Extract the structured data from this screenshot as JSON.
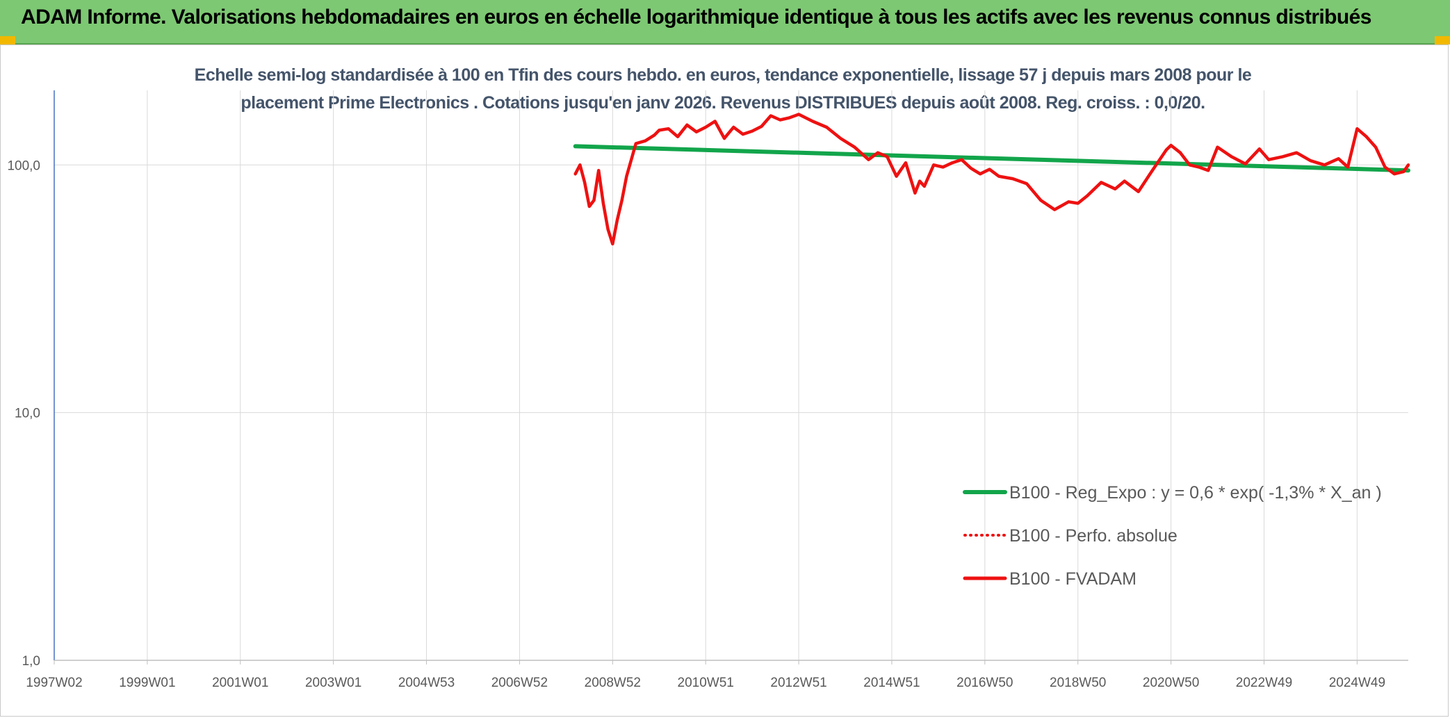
{
  "header": {
    "title": "ADAM Informe. Valorisations hebdomadaires en euros en échelle logarithmique identique à tous les actifs avec les revenus connus distribués"
  },
  "colors": {
    "banner": "#7dc873",
    "trend": "#12a54b",
    "fvadam": "#ee1111",
    "perfo": "#ee1111",
    "grid": "#d9d9d9",
    "axis": "#4472c4"
  },
  "chart_data": {
    "type": "line",
    "title_lines": [
      "Echelle semi-log standardisée à 100 en Tfin des cours hebdo. en euros, tendance exponentielle, lissage 57 j depuis mars 2008 pour le",
      "placement Prime Electronics . Cotations jusqu'en janv 2026. Revenus DISTRIBUES depuis août 2008. Reg. croiss. : 0,0/20."
    ],
    "y_scale": "log",
    "ylim": [
      1,
      200
    ],
    "y_ticks": [
      "1,0",
      "10,0",
      "100,0"
    ],
    "x_range": [
      1997.0,
      2026.1
    ],
    "x_ticks": [
      {
        "label": "1997W02",
        "x": 1997.0
      },
      {
        "label": "1999W01",
        "x": 1999.0
      },
      {
        "label": "2001W01",
        "x": 2001.0
      },
      {
        "label": "2003W01",
        "x": 2003.0
      },
      {
        "label": "2004W53",
        "x": 2005.0
      },
      {
        "label": "2006W52",
        "x": 2007.0
      },
      {
        "label": "2008W52",
        "x": 2009.0
      },
      {
        "label": "2010W51",
        "x": 2011.0
      },
      {
        "label": "2012W51",
        "x": 2013.0
      },
      {
        "label": "2014W51",
        "x": 2015.0
      },
      {
        "label": "2016W50",
        "x": 2017.0
      },
      {
        "label": "2018W50",
        "x": 2019.0
      },
      {
        "label": "2020W50",
        "x": 2021.0
      },
      {
        "label": "2022W49",
        "x": 2023.0
      },
      {
        "label": "2024W49",
        "x": 2025.0
      }
    ],
    "grid": true,
    "legend_position": "right",
    "legend": [
      {
        "name": "B100 - Reg_Expo : y = 0,6 * exp( -1,3% *  X_an )",
        "style": "solid-thick",
        "color": "#12a54b"
      },
      {
        "name": "B100 - Perfo. absolue",
        "style": "dotted",
        "color": "#ee1111"
      },
      {
        "name": "B100 - FVADAM",
        "style": "solid",
        "color": "#ee1111"
      }
    ],
    "series": [
      {
        "name": "B100 - Reg_Expo : y = 0,6 * exp( -1,3% *  X_an )",
        "x": [
          2008.2,
          2026.1
        ],
        "y": [
          119,
          95
        ]
      },
      {
        "name": "B100 - FVADAM",
        "x": [
          2008.2,
          2008.3,
          2008.4,
          2008.5,
          2008.6,
          2008.7,
          2008.8,
          2008.9,
          2009.0,
          2009.1,
          2009.2,
          2009.3,
          2009.5,
          2009.7,
          2009.9,
          2010.0,
          2010.2,
          2010.4,
          2010.6,
          2010.8,
          2011.0,
          2011.2,
          2011.4,
          2011.6,
          2011.8,
          2012.0,
          2012.2,
          2012.4,
          2012.6,
          2012.8,
          2013.0,
          2013.3,
          2013.6,
          2013.9,
          2014.2,
          2014.5,
          2014.7,
          2014.9,
          2015.1,
          2015.3,
          2015.5,
          2015.6,
          2015.7,
          2015.9,
          2016.1,
          2016.3,
          2016.5,
          2016.7,
          2016.9,
          2017.1,
          2017.3,
          2017.6,
          2017.9,
          2018.2,
          2018.5,
          2018.8,
          2019.0,
          2019.2,
          2019.5,
          2019.8,
          2020.0,
          2020.3,
          2020.6,
          2020.9,
          2021.0,
          2021.2,
          2021.4,
          2021.6,
          2021.8,
          2022.0,
          2022.3,
          2022.6,
          2022.9,
          2023.1,
          2023.4,
          2023.7,
          2024.0,
          2024.3,
          2024.6,
          2024.8,
          2025.0,
          2025.2,
          2025.4,
          2025.6,
          2025.8,
          2026.0,
          2026.1
        ],
        "y": [
          92,
          100,
          85,
          68,
          72,
          95,
          70,
          55,
          48,
          60,
          72,
          90,
          122,
          125,
          132,
          138,
          140,
          130,
          145,
          136,
          142,
          150,
          128,
          142,
          133,
          137,
          143,
          158,
          152,
          155,
          160,
          150,
          142,
          128,
          118,
          105,
          112,
          108,
          90,
          102,
          77,
          86,
          82,
          100,
          98,
          102,
          105,
          97,
          92,
          96,
          90,
          88,
          84,
          72,
          66,
          71,
          70,
          75,
          85,
          80,
          86,
          78,
          95,
          115,
          120,
          112,
          100,
          98,
          95,
          118,
          108,
          101,
          116,
          105,
          108,
          112,
          104,
          100,
          106,
          98,
          140,
          130,
          118,
          98,
          92,
          94,
          100
        ]
      }
    ]
  }
}
